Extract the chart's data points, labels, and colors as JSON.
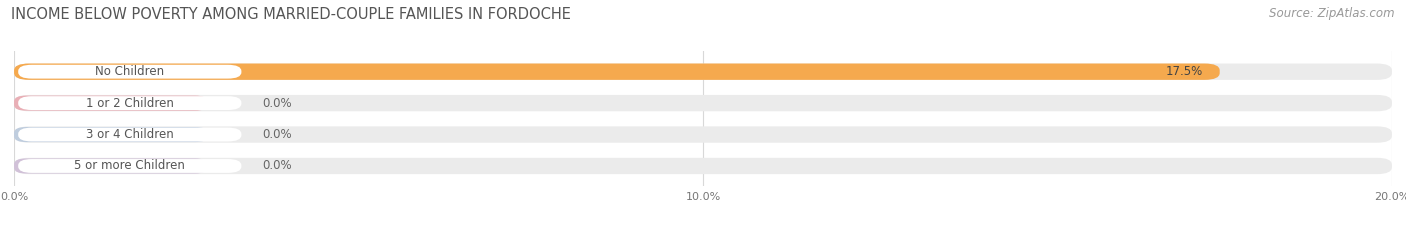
{
  "title": "INCOME BELOW POVERTY AMONG MARRIED-COUPLE FAMILIES IN FORDOCHE",
  "source": "Source: ZipAtlas.com",
  "categories": [
    "No Children",
    "1 or 2 Children",
    "3 or 4 Children",
    "5 or more Children"
  ],
  "values": [
    17.5,
    0.0,
    0.0,
    0.0
  ],
  "bar_colors": [
    "#F5A94E",
    "#E8909A",
    "#A8BDD8",
    "#C4ABCF"
  ],
  "bar_bg_color": "#EBEBEB",
  "label_bg_color": "#FFFFFF",
  "xlim_max": 20.0,
  "xticks": [
    0.0,
    10.0,
    20.0
  ],
  "xtick_labels": [
    "0.0%",
    "10.0%",
    "20.0%"
  ],
  "title_fontsize": 10.5,
  "source_fontsize": 8.5,
  "label_fontsize": 8.5,
  "value_fontsize": 8.5,
  "background_color": "#FFFFFF",
  "grid_color": "#D8D8D8"
}
